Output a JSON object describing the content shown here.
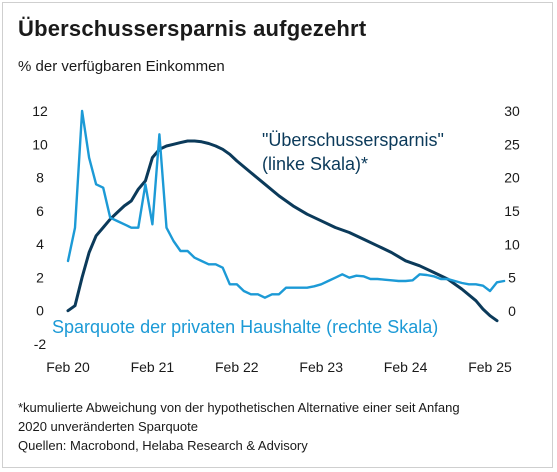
{
  "title": "Überschussersparnis aufgezehrt",
  "subtitle": "% der verfügbaren Einkommen",
  "colors": {
    "excess": "#0b3a5a",
    "saving": "#1c9ad6",
    "text": "#1a1a1a"
  },
  "footnotes": [
    "*kumulierte Abweichung von der hypothetischen Alternative einer seit Anfang",
    "2020 unveränderten Sparquote",
    "Quellen: Macrobond, Helaba Research & Advisory"
  ],
  "chart_data": {
    "type": "line",
    "title": "Überschussersparnis aufgezehrt",
    "subtitle": "% der verfügbaren Einkommen",
    "grid": false,
    "x_ticks": [
      "Feb 20",
      "Feb 21",
      "Feb 22",
      "Feb 23",
      "Feb 24",
      "Feb 25"
    ],
    "y_left": {
      "ticks": [
        -2,
        0,
        2,
        4,
        6,
        8,
        10,
        12
      ],
      "range": [
        -2,
        12.8
      ]
    },
    "y_right": {
      "ticks": [
        0,
        5,
        10,
        15,
        20,
        25,
        30
      ],
      "range": [
        -5,
        32
      ]
    },
    "annotations": [
      {
        "text_lines": [
          "\"Überschussersparnis\"",
          "(linke Skala)*"
        ],
        "series": "excess"
      },
      {
        "text_lines": [
          "Sparquote der privaten Haushalte (rechte Skala)"
        ],
        "series": "saving"
      }
    ],
    "series": [
      {
        "name": "\"Überschussersparnis\" (linke Skala)*",
        "axis": "left",
        "color": "#0b3a5a",
        "points": [
          [
            "2020-02",
            0.0
          ],
          [
            "2020-03",
            0.3
          ],
          [
            "2020-04",
            2.0
          ],
          [
            "2020-05",
            3.5
          ],
          [
            "2020-06",
            4.5
          ],
          [
            "2020-07",
            5.0
          ],
          [
            "2020-08",
            5.5
          ],
          [
            "2020-09",
            5.9
          ],
          [
            "2020-10",
            6.3
          ],
          [
            "2020-11",
            6.6
          ],
          [
            "2020-12",
            7.3
          ],
          [
            "2021-01",
            7.8
          ],
          [
            "2021-02",
            9.2
          ],
          [
            "2021-03",
            9.7
          ],
          [
            "2021-04",
            9.9
          ],
          [
            "2021-05",
            10.0
          ],
          [
            "2021-06",
            10.1
          ],
          [
            "2021-07",
            10.2
          ],
          [
            "2021-08",
            10.2
          ],
          [
            "2021-09",
            10.15
          ],
          [
            "2021-10",
            10.05
          ],
          [
            "2021-11",
            9.9
          ],
          [
            "2021-12",
            9.7
          ],
          [
            "2022-01",
            9.4
          ],
          [
            "2022-02",
            9.0
          ],
          [
            "2022-04",
            8.3
          ],
          [
            "2022-06",
            7.6
          ],
          [
            "2022-08",
            6.9
          ],
          [
            "2022-10",
            6.3
          ],
          [
            "2022-12",
            5.8
          ],
          [
            "2023-02",
            5.4
          ],
          [
            "2023-04",
            5.0
          ],
          [
            "2023-06",
            4.7
          ],
          [
            "2023-08",
            4.3
          ],
          [
            "2023-10",
            3.9
          ],
          [
            "2023-12",
            3.5
          ],
          [
            "2024-02",
            3.0
          ],
          [
            "2024-04",
            2.7
          ],
          [
            "2024-06",
            2.3
          ],
          [
            "2024-08",
            1.9
          ],
          [
            "2024-10",
            1.3
          ],
          [
            "2024-12",
            0.6
          ],
          [
            "2025-01",
            0.1
          ],
          [
            "2025-02",
            -0.3
          ],
          [
            "2025-03",
            -0.6
          ]
        ]
      },
      {
        "name": "Sparquote der privaten Haushalte (rechte Skala)",
        "axis": "right",
        "color": "#1c9ad6",
        "points": [
          [
            "2020-02",
            7.5
          ],
          [
            "2020-03",
            12.5
          ],
          [
            "2020-04",
            30.0
          ],
          [
            "2020-05",
            23.0
          ],
          [
            "2020-06",
            19.0
          ],
          [
            "2020-07",
            18.5
          ],
          [
            "2020-08",
            14.0
          ],
          [
            "2020-09",
            13.5
          ],
          [
            "2020-10",
            13.0
          ],
          [
            "2020-11",
            12.5
          ],
          [
            "2020-12",
            12.5
          ],
          [
            "2021-01",
            19.0
          ],
          [
            "2021-02",
            13.0
          ],
          [
            "2021-03",
            26.5
          ],
          [
            "2021-04",
            12.5
          ],
          [
            "2021-05",
            10.5
          ],
          [
            "2021-06",
            9.0
          ],
          [
            "2021-07",
            9.0
          ],
          [
            "2021-08",
            8.0
          ],
          [
            "2021-09",
            7.5
          ],
          [
            "2021-10",
            7.0
          ],
          [
            "2021-11",
            7.0
          ],
          [
            "2021-12",
            6.5
          ],
          [
            "2022-01",
            4.0
          ],
          [
            "2022-02",
            4.0
          ],
          [
            "2022-03",
            3.0
          ],
          [
            "2022-04",
            2.5
          ],
          [
            "2022-05",
            2.5
          ],
          [
            "2022-06",
            2.0
          ],
          [
            "2022-07",
            2.5
          ],
          [
            "2022-08",
            2.5
          ],
          [
            "2022-09",
            3.5
          ],
          [
            "2022-10",
            3.5
          ],
          [
            "2022-11",
            3.5
          ],
          [
            "2022-12",
            3.5
          ],
          [
            "2023-01",
            3.7
          ],
          [
            "2023-02",
            4.0
          ],
          [
            "2023-03",
            4.5
          ],
          [
            "2023-04",
            5.0
          ],
          [
            "2023-05",
            5.5
          ],
          [
            "2023-06",
            5.0
          ],
          [
            "2023-07",
            5.3
          ],
          [
            "2023-08",
            5.2
          ],
          [
            "2023-09",
            4.8
          ],
          [
            "2023-10",
            4.8
          ],
          [
            "2023-11",
            4.7
          ],
          [
            "2023-12",
            4.6
          ],
          [
            "2024-01",
            4.5
          ],
          [
            "2024-02",
            4.5
          ],
          [
            "2024-03",
            4.6
          ],
          [
            "2024-04",
            5.5
          ],
          [
            "2024-05",
            5.4
          ],
          [
            "2024-06",
            5.2
          ],
          [
            "2024-07",
            4.8
          ],
          [
            "2024-08",
            4.8
          ],
          [
            "2024-09",
            4.5
          ],
          [
            "2024-10",
            4.2
          ],
          [
            "2024-11",
            4.0
          ],
          [
            "2024-12",
            4.0
          ],
          [
            "2025-01",
            3.8
          ],
          [
            "2025-02",
            3.0
          ],
          [
            "2025-03",
            4.3
          ],
          [
            "2025-04",
            4.5
          ]
        ]
      }
    ]
  }
}
